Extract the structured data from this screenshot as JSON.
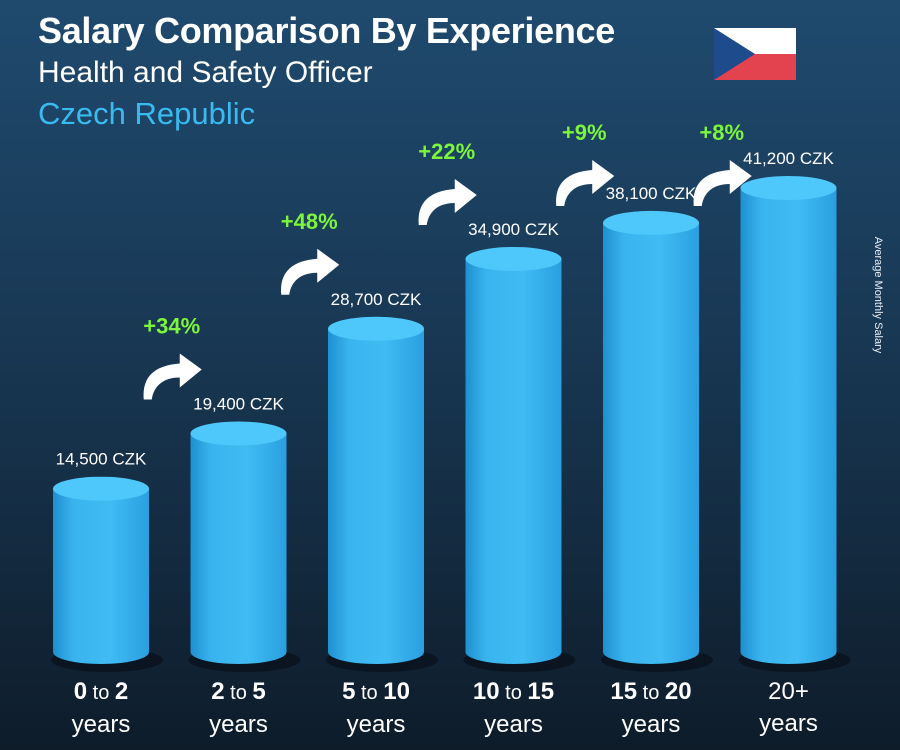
{
  "header": {
    "title": "Salary Comparison By Experience",
    "subtitle": "Health and Safety Officer",
    "country": "Czech Republic"
  },
  "side_label": "Average Monthly Salary",
  "colors": {
    "bar": "#3ab4ee",
    "pct": "#7cf53a",
    "country": "#39bbf2",
    "flag_white": "#ffffff",
    "flag_red": "#e3424f",
    "flag_blue": "#1d4b8c"
  },
  "chart_data": {
    "type": "bar",
    "title": "Salary Comparison By Experience",
    "ylabel": "Average Monthly Salary",
    "categories": [
      "0 to 2 years",
      "2 to 5 years",
      "5 to 10 years",
      "10 to 15 years",
      "15 to 20 years",
      "20+ years"
    ],
    "values": [
      14500,
      19400,
      28700,
      34900,
      38100,
      41200
    ],
    "value_labels": [
      "14,500 CZK",
      "19,400 CZK",
      "28,700 CZK",
      "34,900 CZK",
      "38,100 CZK",
      "41,200 CZK"
    ],
    "increases": [
      "+34%",
      "+48%",
      "+22%",
      "+9%",
      "+8%"
    ],
    "unit": "CZK",
    "ylim": [
      0,
      41200
    ],
    "grid": false,
    "legend": "none"
  },
  "x_labels": [
    {
      "a": "0",
      "to": "to",
      "b": "2",
      "unit": "years"
    },
    {
      "a": "2",
      "to": "to",
      "b": "5",
      "unit": "years"
    },
    {
      "a": "5",
      "to": "to",
      "b": "10",
      "unit": "years"
    },
    {
      "a": "10",
      "to": "to",
      "b": "15",
      "unit": "years"
    },
    {
      "a": "15",
      "to": "to",
      "b": "20",
      "unit": "years"
    },
    {
      "a": "20+",
      "to": "",
      "b": "",
      "unit": "years"
    }
  ]
}
